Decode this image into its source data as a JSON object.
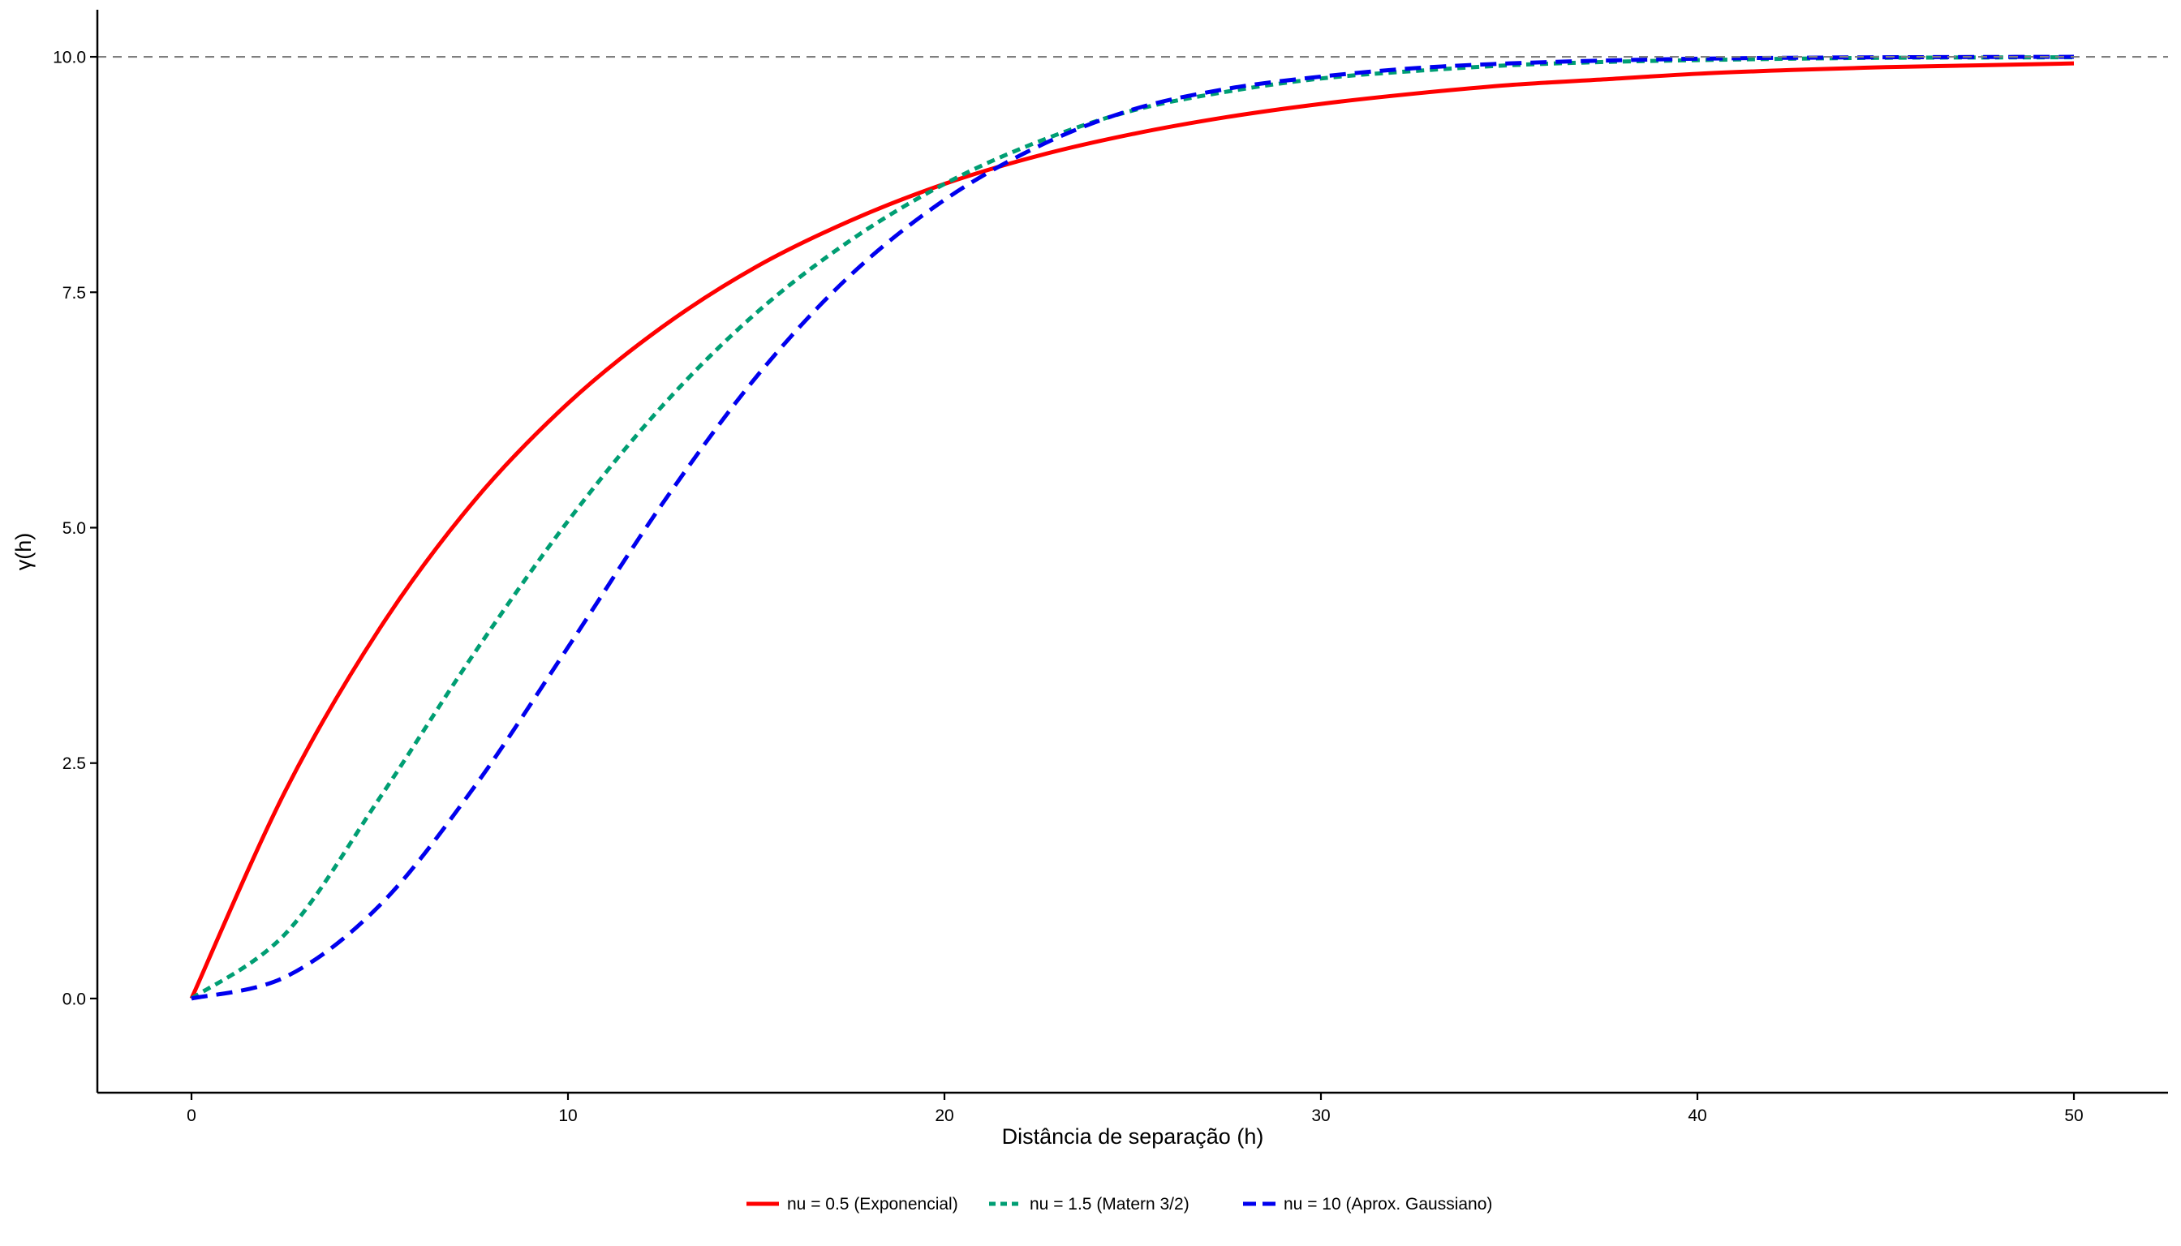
{
  "chart_data": {
    "type": "line",
    "title": "",
    "xlabel": "Distância de separação (h)",
    "ylabel": "γ(h)",
    "xlim": [
      -2.5,
      52.5
    ],
    "ylim": [
      -1.0,
      10.5
    ],
    "xticks": [
      0,
      10,
      20,
      30,
      40,
      50
    ],
    "yticks": [
      0.0,
      2.5,
      5.0,
      7.5,
      10.0
    ],
    "xtick_labels": [
      "0",
      "10",
      "20",
      "30",
      "40",
      "50"
    ],
    "ytick_labels": [
      "0.0",
      "2.5",
      "5.0",
      "7.5",
      "10.0"
    ],
    "grid": false,
    "legend_position": "bottom",
    "reference_line": {
      "y": 10.0,
      "style": "dashed",
      "color": "#7f7f7f"
    },
    "series": [
      {
        "name": "nu = 0.5 (Exponencial)",
        "color": "#ff0000",
        "dash": "solid",
        "x": [
          0,
          2.5,
          5,
          7.5,
          10,
          12.5,
          15,
          17.5,
          20,
          22.5,
          25,
          27.5,
          30,
          32.5,
          35,
          37.5,
          40,
          42.5,
          45,
          47.5,
          50
        ],
        "y": [
          0,
          2.21,
          3.93,
          5.28,
          6.32,
          7.13,
          7.77,
          8.26,
          8.65,
          8.95,
          9.18,
          9.36,
          9.5,
          9.61,
          9.7,
          9.76,
          9.82,
          9.86,
          9.89,
          9.91,
          9.93
        ]
      },
      {
        "name": "nu = 1.5 (Matern 3/2)",
        "color": "#009e73",
        "dash": "dotted",
        "x": [
          0,
          2.5,
          5,
          7.5,
          10,
          12.5,
          15,
          17.5,
          20,
          22.5,
          25,
          27.5,
          30,
          32.5,
          35,
          37.5,
          40,
          42.5,
          45,
          47.5,
          50
        ],
        "y": [
          0,
          0.69,
          2.13,
          3.66,
          5.07,
          6.29,
          7.28,
          8.05,
          8.65,
          9.1,
          9.43,
          9.63,
          9.77,
          9.85,
          9.91,
          9.945,
          9.965,
          9.98,
          9.99,
          9.993,
          9.995
        ]
      },
      {
        "name": "nu = 10 (Aprox. Gaussiano)",
        "color": "#0000ee",
        "dash": "dashed",
        "x": [
          0,
          2.5,
          5,
          7.5,
          10,
          12.5,
          15,
          17.5,
          20,
          22.5,
          25,
          27.5,
          30,
          32.5,
          35,
          37.5,
          40,
          42.5,
          45,
          47.5,
          50
        ],
        "y": [
          0,
          0.23,
          0.99,
          2.24,
          3.73,
          5.25,
          6.6,
          7.68,
          8.48,
          9.05,
          9.44,
          9.66,
          9.79,
          9.88,
          9.93,
          9.96,
          9.98,
          9.99,
          9.995,
          9.998,
          10.0
        ]
      }
    ]
  }
}
